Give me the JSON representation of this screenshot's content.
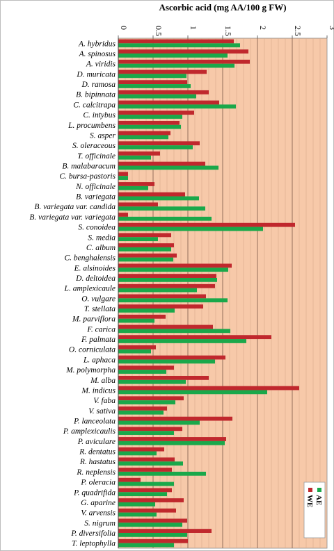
{
  "chart_data": {
    "type": "bar",
    "orientation": "horizontal",
    "title": "Ascorbic acid (mg AA/100 g FW)",
    "xlim": [
      0,
      3
    ],
    "xticks": [
      "0",
      "0.5",
      "1",
      "1.5",
      "2",
      "2.5",
      "3"
    ],
    "grid": true,
    "legend_position": "bottom-right",
    "plot_background": "#f7c9a9",
    "categories": [
      "A. hybridus",
      "A. spinosus",
      "A. viridis",
      "D. muricata",
      "D. ramosa",
      "B. bipinnata",
      "C. calcitrapa",
      "C. intybus",
      "L. procumbens",
      "S. asper",
      "S. oleraceous",
      "T. officinale",
      "B. malabaracum",
      "C. bursa-pastoris",
      "N. officinale",
      "B. variegata",
      "B. variegata var. candida",
      "B. variegata var. variegata",
      "S. conoidea",
      "S. media",
      "C. album",
      "C. benghalensis",
      "E. alsinoides",
      "D. deltoidea",
      "L. amplexicaule",
      "O. vulgare",
      "T. stellata",
      "M. parviflora",
      "F. carica",
      "F. palmata",
      "O. corniculata",
      "L. aphaca",
      "M. polymorpha",
      "M. alba",
      "M. indicus",
      "V. faba",
      "V. sativa",
      "P. lanceolata",
      "P. amplexicaulis",
      "P. aviculare",
      "R. dentatus",
      "R. hastatus",
      "R. neplensis",
      "P. oleracia",
      "P. quadrifida",
      "G. aparine",
      "V. arvensis",
      "S. nigrum",
      "P. diversifolia",
      "T. leptophylla"
    ],
    "series": [
      {
        "name": "WE",
        "color": "#c0282d",
        "values": [
          1.66,
          1.87,
          1.89,
          1.27,
          0.99,
          1.3,
          1.45,
          1.09,
          0.88,
          0.75,
          1.17,
          0.6,
          1.25,
          0.14,
          0.52,
          0.96,
          0.57,
          0.14,
          2.54,
          0.76,
          0.8,
          0.84,
          1.63,
          1.41,
          1.39,
          1.26,
          1.22,
          0.68,
          1.36,
          2.2,
          0.54,
          1.54,
          0.8,
          1.3,
          2.6,
          0.94,
          0.7,
          1.64,
          0.92,
          1.55,
          0.66,
          0.81,
          0.77,
          0.32,
          0.77,
          0.94,
          0.83,
          0.99,
          1.34,
          1.0
        ]
      },
      {
        "name": "AE",
        "color": "#1aa84a",
        "values": [
          1.75,
          1.57,
          1.67,
          0.98,
          1.04,
          1.12,
          1.69,
          0.92,
          0.9,
          0.72,
          1.07,
          0.47,
          1.44,
          0.14,
          0.43,
          1.16,
          1.25,
          1.34,
          2.08,
          0.57,
          0.76,
          0.79,
          1.58,
          1.42,
          1.13,
          1.57,
          0.81,
          0.52,
          1.61,
          1.84,
          0.47,
          1.39,
          0.69,
          0.97,
          2.14,
          0.82,
          0.65,
          1.17,
          0.8,
          1.53,
          0.55,
          0.93,
          1.26,
          0.8,
          0.7,
          0.53,
          0.55,
          0.92,
          0.99,
          0.8
        ]
      }
    ]
  }
}
